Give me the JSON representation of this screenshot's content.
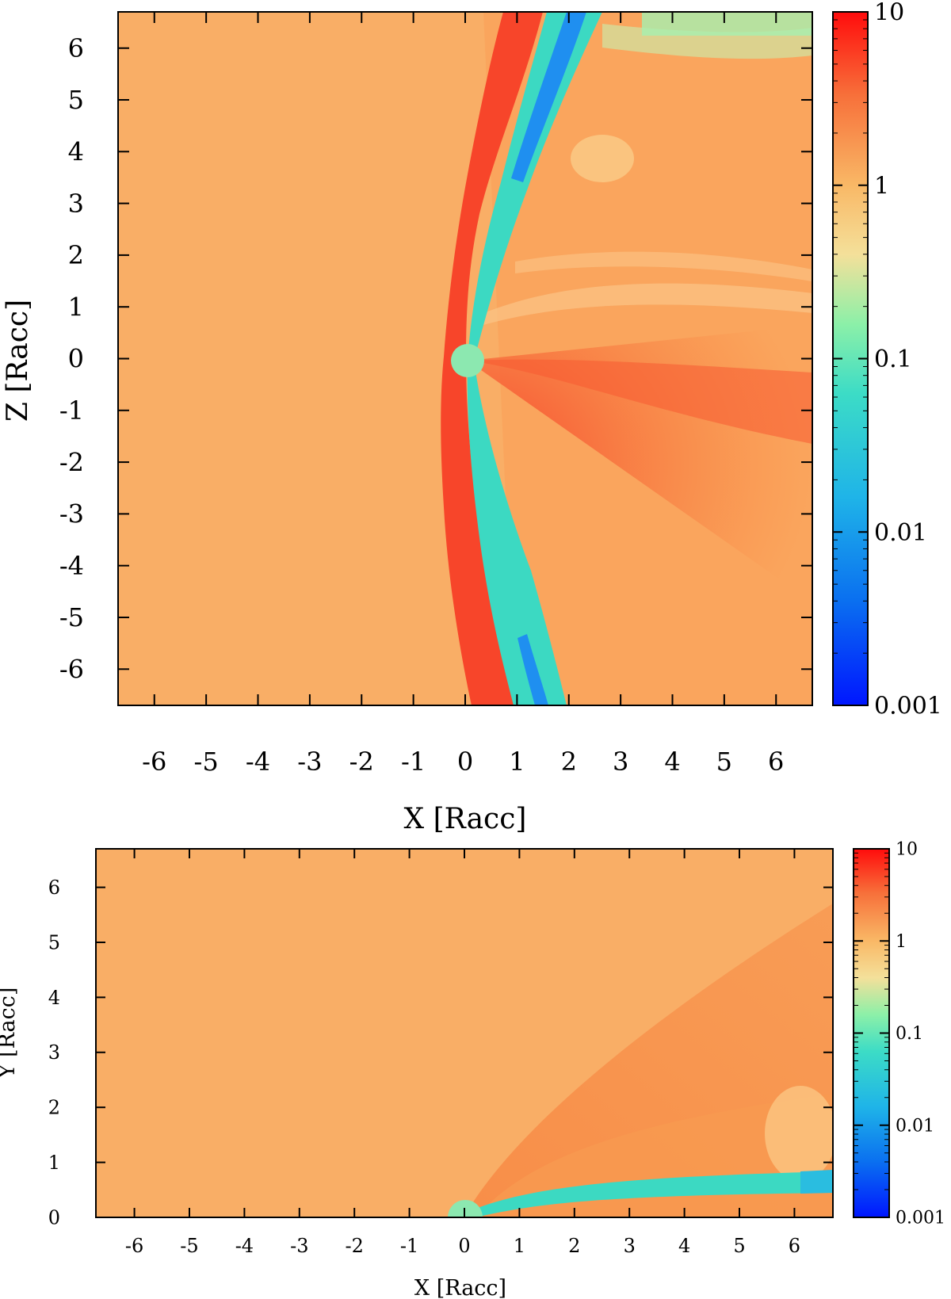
{
  "colorscale": {
    "stops": [
      "#0016ff",
      "#0a8ff0",
      "#2fd6d6",
      "#8cf0a8",
      "#f9e39a",
      "#f9b15f",
      "#f97a3c",
      "#ff1010"
    ],
    "background": "#f9ae66",
    "accent_red": "#f7452a",
    "accent_cyan": "#3cd9c2",
    "accent_blue": "#1a8ff0",
    "body_color": "#8ce8b0"
  },
  "chart_data": [
    {
      "type": "heatmap",
      "title": "",
      "xlabel": "X [Racc]",
      "ylabel": "Z [Racc]",
      "xlim": [
        -6.7,
        6.7
      ],
      "ylim": [
        -6.7,
        6.7
      ],
      "xticks": [
        -6,
        -5,
        -4,
        -3,
        -2,
        -1,
        0,
        1,
        2,
        3,
        4,
        5,
        6
      ],
      "yticks": [
        -6,
        -5,
        -4,
        -3,
        -2,
        -1,
        0,
        1,
        2,
        3,
        4,
        5,
        6
      ],
      "colorbar": {
        "scale": "log",
        "range": [
          0.001,
          10
        ],
        "tick_labels": [
          "10",
          "1",
          "0.1",
          "0.01",
          "0.001"
        ]
      },
      "grid": false
    },
    {
      "type": "heatmap",
      "title": "",
      "xlabel": "X [Racc]",
      "ylabel": "Y [Racc]",
      "xlim": [
        -6.7,
        6.7
      ],
      "ylim": [
        0,
        6.7
      ],
      "xticks": [
        -6,
        -5,
        -4,
        -3,
        -2,
        -1,
        0,
        1,
        2,
        3,
        4,
        5,
        6
      ],
      "yticks": [
        0,
        1,
        2,
        3,
        4,
        5,
        6
      ],
      "colorbar": {
        "scale": "log",
        "range": [
          0.001,
          10
        ],
        "tick_labels": [
          "10",
          "1",
          "0.1",
          "0.01",
          "0.001"
        ]
      },
      "grid": false
    }
  ]
}
